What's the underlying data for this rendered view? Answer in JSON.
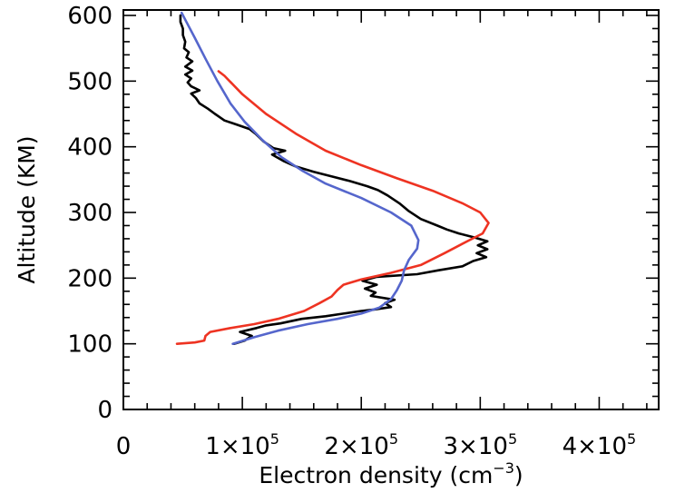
{
  "chart_data": {
    "type": "line",
    "title": "",
    "xlabel": "Electron density (cm",
    "xlabel_sup": "−3",
    "xlabel_close": ")",
    "ylabel": "Altitude (KM)",
    "xlim": [
      0,
      450000
    ],
    "ylim": [
      0,
      600
    ],
    "grid": false,
    "x_ticks": [
      {
        "value": 0,
        "mantissa": "0",
        "exp": ""
      },
      {
        "value": 100000,
        "mantissa": "1×10",
        "exp": "5"
      },
      {
        "value": 200000,
        "mantissa": "2×10",
        "exp": "5"
      },
      {
        "value": 300000,
        "mantissa": "3×10",
        "exp": "5"
      },
      {
        "value": 400000,
        "mantissa": "4×10",
        "exp": "5"
      }
    ],
    "y_ticks": [
      0,
      100,
      200,
      300,
      400,
      500,
      600
    ],
    "series": [
      {
        "color": "#000000",
        "points": [
          [
            93000,
            100
          ],
          [
            102000,
            105
          ],
          [
            108000,
            112
          ],
          [
            98000,
            118
          ],
          [
            112000,
            124
          ],
          [
            120000,
            128
          ],
          [
            132000,
            131
          ],
          [
            150000,
            138
          ],
          [
            170000,
            142
          ],
          [
            185000,
            146
          ],
          [
            200000,
            150
          ],
          [
            210000,
            152
          ],
          [
            225000,
            156
          ],
          [
            220000,
            162
          ],
          [
            228000,
            167
          ],
          [
            208000,
            173
          ],
          [
            212000,
            178
          ],
          [
            203000,
            184
          ],
          [
            213000,
            190
          ],
          [
            201000,
            196
          ],
          [
            213000,
            202
          ],
          [
            247000,
            206
          ],
          [
            265000,
            212
          ],
          [
            285000,
            218
          ],
          [
            294000,
            226
          ],
          [
            305000,
            232
          ],
          [
            297000,
            238
          ],
          [
            306000,
            244
          ],
          [
            298000,
            250
          ],
          [
            306000,
            256
          ],
          [
            295000,
            262
          ],
          [
            282000,
            268
          ],
          [
            272000,
            274
          ],
          [
            264000,
            280
          ],
          [
            250000,
            290
          ],
          [
            240000,
            302
          ],
          [
            232000,
            314
          ],
          [
            222000,
            326
          ],
          [
            214000,
            334
          ],
          [
            205000,
            340
          ],
          [
            190000,
            348
          ],
          [
            175000,
            355
          ],
          [
            160000,
            362
          ],
          [
            145000,
            370
          ],
          [
            135000,
            378
          ],
          [
            125000,
            388
          ],
          [
            136000,
            394
          ],
          [
            126000,
            398
          ],
          [
            118000,
            408
          ],
          [
            111000,
            420
          ],
          [
            106000,
            427
          ],
          [
            95000,
            434
          ],
          [
            85000,
            440
          ],
          [
            77000,
            450
          ],
          [
            71000,
            458
          ],
          [
            64000,
            466
          ],
          [
            61000,
            474
          ],
          [
            57000,
            481
          ],
          [
            64000,
            486
          ],
          [
            57000,
            492
          ],
          [
            54000,
            498
          ],
          [
            57000,
            504
          ],
          [
            52000,
            510
          ],
          [
            58000,
            516
          ],
          [
            52000,
            522
          ],
          [
            58000,
            530
          ],
          [
            53000,
            536
          ],
          [
            55000,
            544
          ],
          [
            51000,
            550
          ],
          [
            52000,
            560
          ],
          [
            50000,
            570
          ],
          [
            50000,
            580
          ],
          [
            48000,
            590
          ],
          [
            48000,
            600
          ]
        ]
      },
      {
        "color": "#ee3322",
        "points": [
          [
            45000,
            100
          ],
          [
            60000,
            102
          ],
          [
            68000,
            105
          ],
          [
            69000,
            112
          ],
          [
            73000,
            118
          ],
          [
            90000,
            124
          ],
          [
            110000,
            130
          ],
          [
            130000,
            138
          ],
          [
            152000,
            150
          ],
          [
            165000,
            162
          ],
          [
            175000,
            172
          ],
          [
            180000,
            182
          ],
          [
            185000,
            190
          ],
          [
            200000,
            198
          ],
          [
            225000,
            208
          ],
          [
            250000,
            220
          ],
          [
            270000,
            238
          ],
          [
            290000,
            257
          ],
          [
            302000,
            268
          ],
          [
            307000,
            284
          ],
          [
            300000,
            300
          ],
          [
            285000,
            314
          ],
          [
            260000,
            333
          ],
          [
            230000,
            352
          ],
          [
            200000,
            372
          ],
          [
            170000,
            394
          ],
          [
            145000,
            420
          ],
          [
            120000,
            450
          ],
          [
            100000,
            480
          ],
          [
            85000,
            508
          ],
          [
            80000,
            515
          ]
        ]
      },
      {
        "color": "#5566cc",
        "points": [
          [
            92000,
            100
          ],
          [
            110000,
            110
          ],
          [
            130000,
            120
          ],
          [
            155000,
            130
          ],
          [
            180000,
            138
          ],
          [
            200000,
            146
          ],
          [
            215000,
            155
          ],
          [
            225000,
            168
          ],
          [
            230000,
            182
          ],
          [
            234000,
            196
          ],
          [
            236000,
            212
          ],
          [
            240000,
            228
          ],
          [
            247000,
            245
          ],
          [
            248000,
            258
          ],
          [
            242000,
            280
          ],
          [
            225000,
            300
          ],
          [
            200000,
            322
          ],
          [
            170000,
            344
          ],
          [
            150000,
            364
          ],
          [
            133000,
            384
          ],
          [
            117000,
            410
          ],
          [
            102000,
            438
          ],
          [
            90000,
            466
          ],
          [
            79000,
            500
          ],
          [
            69000,
            534
          ],
          [
            60000,
            566
          ],
          [
            53000,
            590
          ],
          [
            49000,
            604
          ]
        ]
      }
    ]
  }
}
